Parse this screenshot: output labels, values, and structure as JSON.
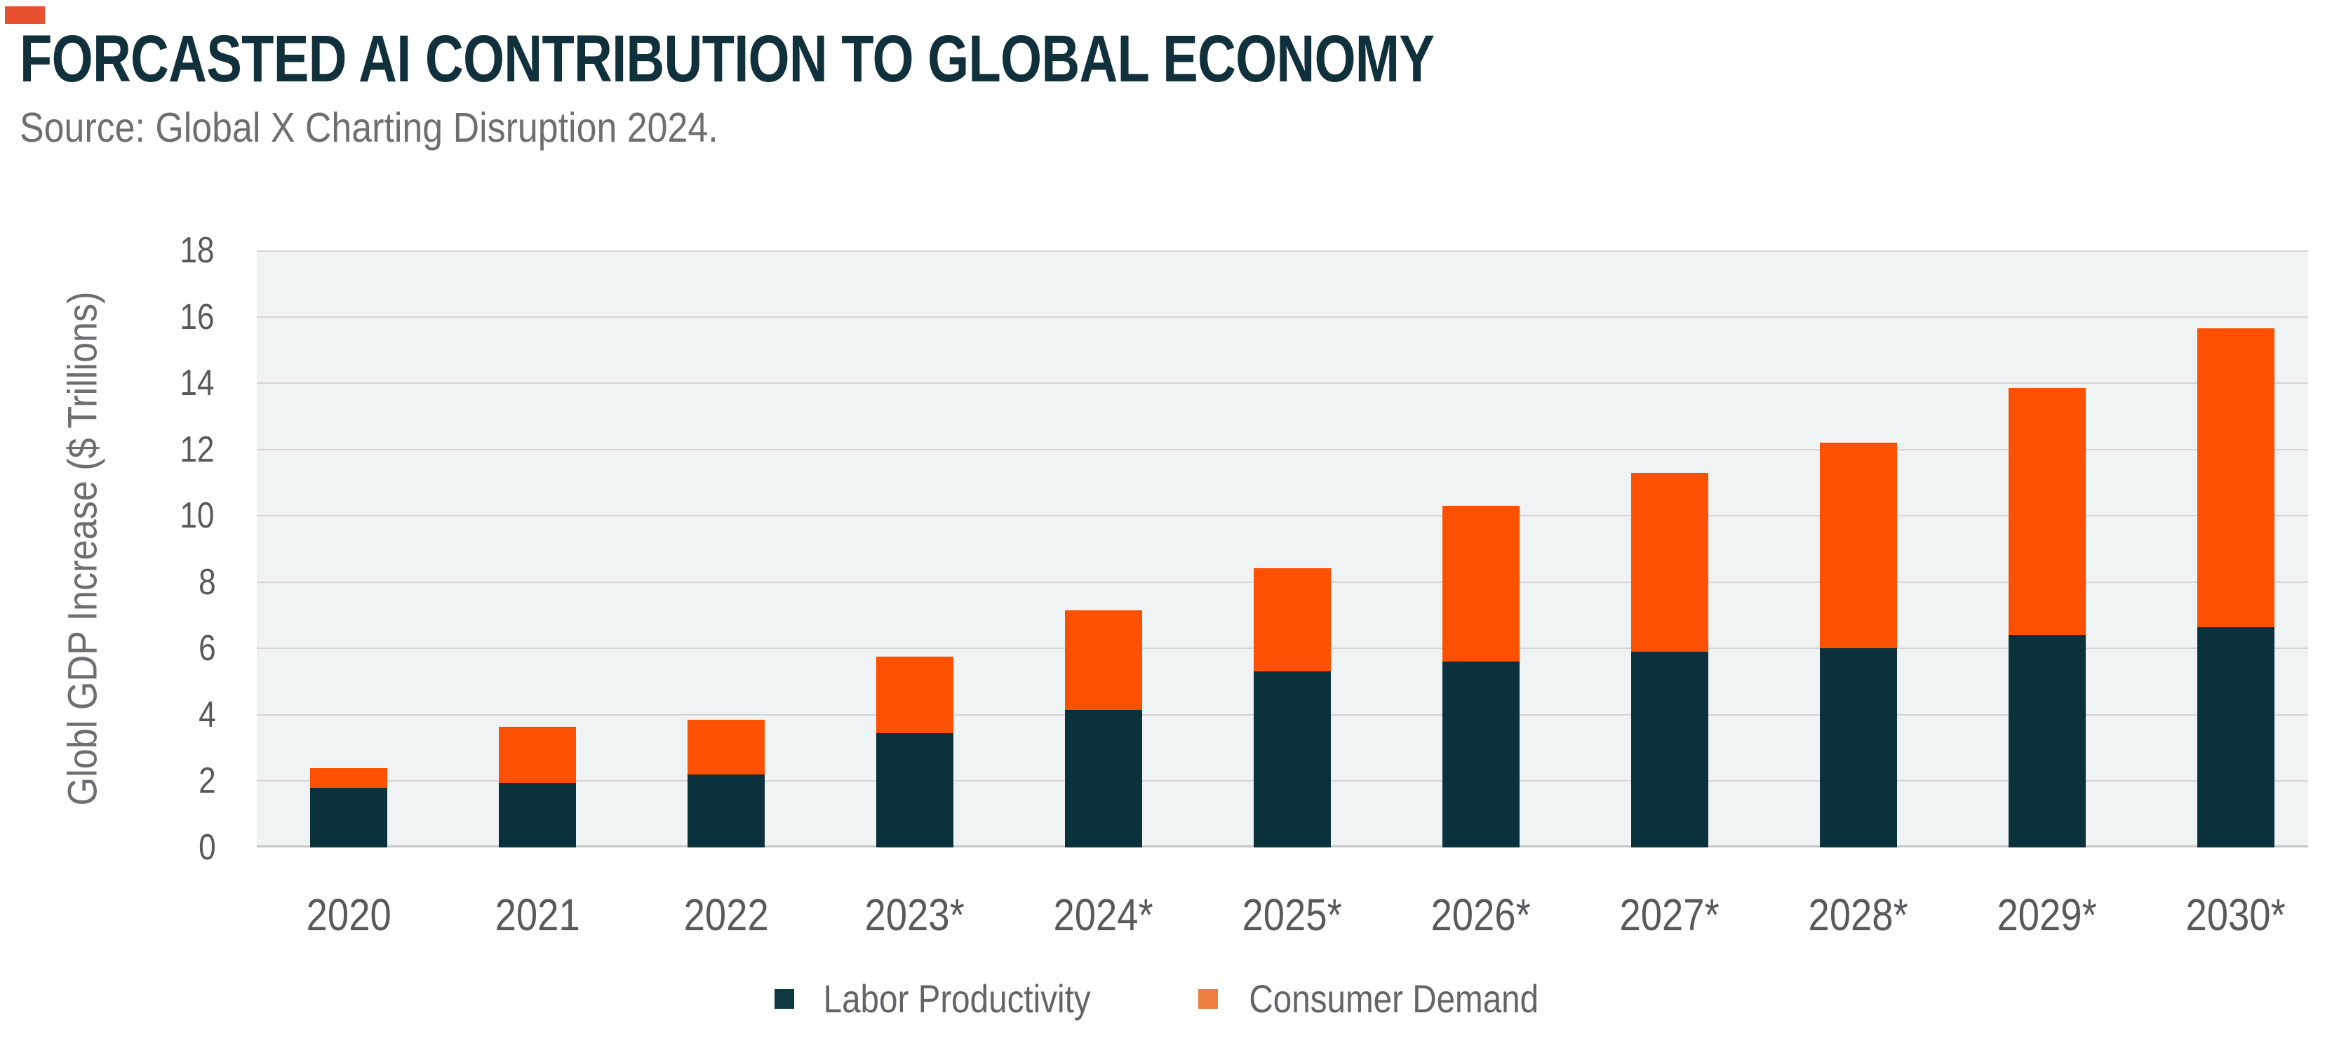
{
  "header": {
    "title": "FORCASTED AI CONTRIBUTION TO GLOBAL ECONOMY",
    "source": "Source: Global X Charting Disruption 2024."
  },
  "chart_data": {
    "type": "bar",
    "stacked": true,
    "title": "FORCASTED AI CONTRIBUTION TO GLOBAL ECONOMY",
    "subtitle": "Source: Global X Charting Disruption 2024.",
    "categories": [
      "2020",
      "2021",
      "2022",
      "2023*",
      "2024*",
      "2025*",
      "2026*",
      "2027*",
      "2028*",
      "2029*",
      "2030*"
    ],
    "series": [
      {
        "name": "Labor Productivity",
        "color": "#0B323C",
        "values": [
          1.8,
          1.95,
          2.2,
          3.45,
          4.15,
          5.3,
          5.6,
          5.9,
          6.0,
          6.4,
          6.65
        ]
      },
      {
        "name": "Consumer Demand",
        "color": "#FC5102",
        "values": [
          0.6,
          1.7,
          1.65,
          2.3,
          3.0,
          3.1,
          4.7,
          5.4,
          6.2,
          7.45,
          9.0
        ]
      }
    ],
    "totals": [
      2.4,
      3.65,
      3.85,
      5.75,
      7.15,
      8.4,
      10.3,
      11.3,
      12.2,
      13.85,
      15.65
    ],
    "xlabel": "",
    "ylabel": "Globl GDP Increase ($ Trillions)",
    "ylim": [
      0,
      18
    ],
    "ytick_step": 2,
    "yticks": [
      0,
      2,
      4,
      6,
      8,
      10,
      12,
      14,
      16,
      18
    ],
    "grid": true,
    "legend_position": "bottom"
  },
  "legend": {
    "entries": [
      {
        "label": "Labor Productivity",
        "swatch_color": "#0E3741"
      },
      {
        "label": "Consumer Demand",
        "swatch_color": "#EE7E40"
      }
    ]
  },
  "colors": {
    "accent_square": "#E8502F",
    "title_text": "#10303B",
    "muted_text": "#6D6E71",
    "tick_text": "#58595B",
    "plot_background": "#F0F3F4",
    "gridline": "#D3D4D6",
    "axis_line": "#C7C8CA",
    "bar_navy": "#0B323C",
    "bar_orange": "#FC5102"
  }
}
